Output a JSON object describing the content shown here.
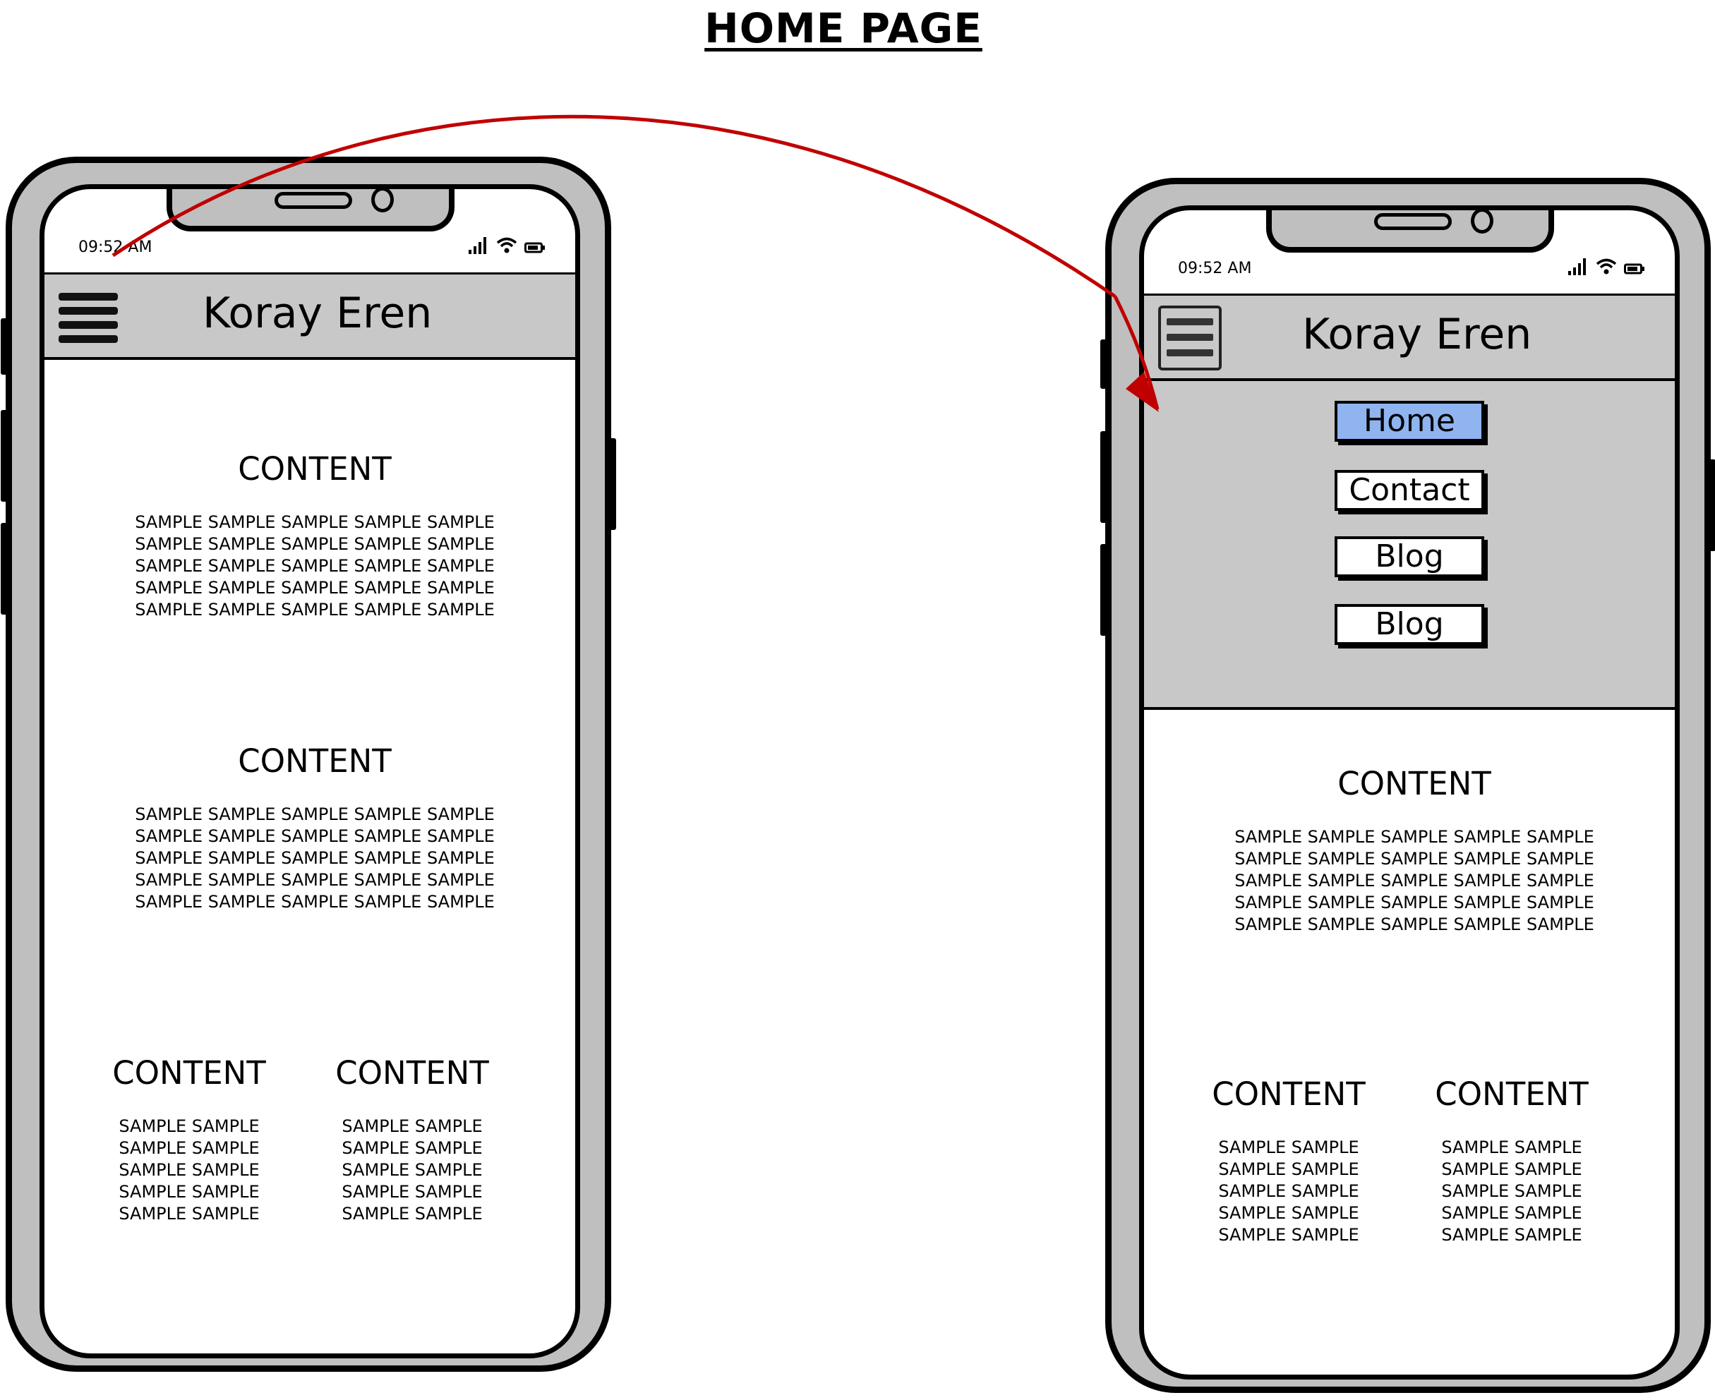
{
  "page": {
    "title": "HOME PAGE"
  },
  "colors": {
    "accent_arrow": "#c00000",
    "device_gray": "#bfbfbf",
    "header_gray": "#c8c8c8",
    "active_button": "#8fb4f0"
  },
  "phones": {
    "collapsed": {
      "status": {
        "time": "09:52 AM"
      },
      "header": {
        "title": "Koray Eren",
        "menu_icon": "hamburger-icon"
      },
      "content": {
        "section1": {
          "heading": "CONTENT",
          "lines": [
            "SAMPLE SAMPLE SAMPLE SAMPLE SAMPLE",
            "SAMPLE SAMPLE SAMPLE SAMPLE SAMPLE",
            "SAMPLE SAMPLE SAMPLE SAMPLE SAMPLE",
            "SAMPLE SAMPLE SAMPLE SAMPLE SAMPLE",
            "SAMPLE SAMPLE SAMPLE SAMPLE SAMPLE"
          ]
        },
        "section2": {
          "heading": "CONTENT",
          "lines": [
            "SAMPLE SAMPLE SAMPLE SAMPLE SAMPLE",
            "SAMPLE SAMPLE SAMPLE SAMPLE SAMPLE",
            "SAMPLE SAMPLE SAMPLE SAMPLE SAMPLE",
            "SAMPLE SAMPLE SAMPLE SAMPLE SAMPLE",
            "SAMPLE SAMPLE SAMPLE SAMPLE SAMPLE"
          ]
        },
        "col_left": {
          "heading": "CONTENT",
          "lines": [
            "SAMPLE SAMPLE",
            "SAMPLE SAMPLE",
            "SAMPLE SAMPLE",
            "SAMPLE SAMPLE",
            "SAMPLE SAMPLE"
          ]
        },
        "col_right": {
          "heading": "CONTENT",
          "lines": [
            "SAMPLE SAMPLE",
            "SAMPLE SAMPLE",
            "SAMPLE SAMPLE",
            "SAMPLE SAMPLE",
            "SAMPLE SAMPLE"
          ]
        }
      }
    },
    "expanded": {
      "status": {
        "time": "09:52 AM"
      },
      "header": {
        "title": "Koray Eren",
        "menu_icon": "hamburger-icon"
      },
      "menu": {
        "items": [
          {
            "label": "Home",
            "active": true
          },
          {
            "label": "Contact"
          },
          {
            "label": "Blog"
          },
          {
            "label": "Blog"
          }
        ]
      },
      "content": {
        "section1": {
          "heading": "CONTENT",
          "lines": [
            "SAMPLE SAMPLE SAMPLE SAMPLE SAMPLE",
            "SAMPLE SAMPLE SAMPLE SAMPLE SAMPLE",
            "SAMPLE SAMPLE SAMPLE SAMPLE SAMPLE",
            "SAMPLE SAMPLE SAMPLE SAMPLE SAMPLE",
            "SAMPLE SAMPLE SAMPLE SAMPLE SAMPLE"
          ]
        },
        "col_left": {
          "heading": "CONTENT",
          "lines": [
            "SAMPLE SAMPLE",
            "SAMPLE SAMPLE",
            "SAMPLE SAMPLE",
            "SAMPLE SAMPLE",
            "SAMPLE SAMPLE"
          ]
        },
        "col_right": {
          "heading": "CONTENT",
          "lines": [
            "SAMPLE SAMPLE",
            "SAMPLE SAMPLE",
            "SAMPLE SAMPLE",
            "SAMPLE SAMPLE",
            "SAMPLE SAMPLE"
          ]
        }
      }
    }
  }
}
